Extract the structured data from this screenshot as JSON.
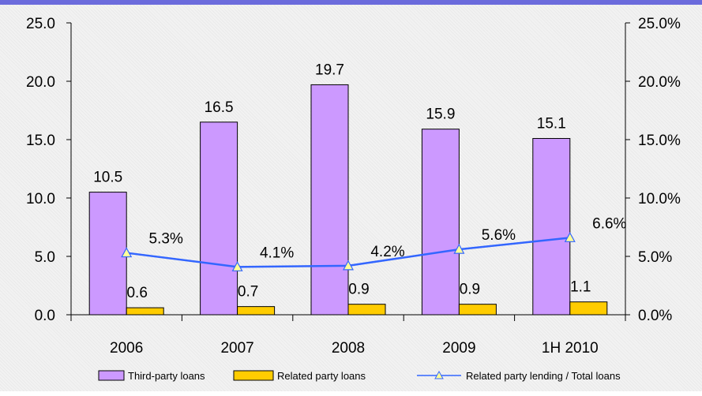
{
  "chart_data": {
    "type": "bar",
    "categories": [
      "2006",
      "2007",
      "2008",
      "2009",
      "1H 2010"
    ],
    "series": [
      {
        "name": "Third-party loans",
        "kind": "bar",
        "axis": "left",
        "values": [
          10.5,
          16.5,
          19.7,
          15.9,
          15.1
        ],
        "labels": [
          "10.5",
          "16.5",
          "19.7",
          "15.9",
          "15.1"
        ],
        "color": "#cc99ff"
      },
      {
        "name": "Related party loans",
        "kind": "bar",
        "axis": "left",
        "values": [
          0.6,
          0.7,
          0.9,
          0.9,
          1.1
        ],
        "labels": [
          "0.6",
          "0.7",
          "0.9",
          "0.9",
          "1.1"
        ],
        "color": "#ffcc00"
      },
      {
        "name": "Related party lending / Total loans",
        "kind": "line",
        "axis": "right",
        "values": [
          5.3,
          4.1,
          4.2,
          5.6,
          6.6
        ],
        "labels": [
          "5.3%",
          "4.1%",
          "4.2%",
          "5.6%",
          "6.6%"
        ],
        "color": "#3366ff",
        "marker": "triangle",
        "marker_color": "#ffff99"
      }
    ],
    "y_left": {
      "lim": [
        0,
        25
      ],
      "ticks": [
        "0.0",
        "5.0",
        "10.0",
        "15.0",
        "20.0",
        "25.0"
      ]
    },
    "y_right": {
      "lim": [
        0,
        25
      ],
      "ticks": [
        "0.0%",
        "5.0%",
        "10.0%",
        "15.0%",
        "20.0%",
        "25.0%"
      ]
    },
    "grid": false,
    "legend_position": "bottom",
    "accent_color": "#6b6bdc"
  }
}
